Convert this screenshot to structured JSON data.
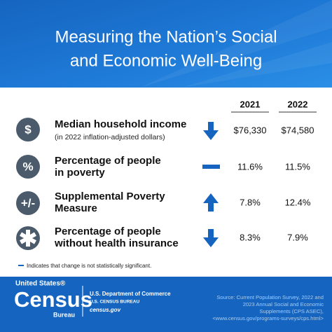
{
  "header": {
    "title_lines": [
      "Measuring the Nation’s Social",
      "and Economic Well-Being"
    ]
  },
  "table": {
    "columns": [
      "2021",
      "2022"
    ],
    "rows": [
      {
        "icon": "$",
        "label": [
          "Median household income"
        ],
        "note": "(in 2022 inflation-adjusted dollars)",
        "values": [
          "$76,330",
          "$74,580"
        ]
      },
      {
        "icon": "%",
        "label": [
          "Percentage of people",
          "in poverty"
        ],
        "values": [
          "11.6%",
          "11.5%"
        ]
      },
      {
        "icon": "+/-",
        "label": [
          "Supplemental Poverty",
          "Measure"
        ],
        "values": [
          "7.8%",
          "12.4%"
        ]
      },
      {
        "label": [
          "Percentage of people",
          "without health insurance"
        ],
        "values": [
          "8.3%",
          "7.9%"
        ]
      }
    ]
  },
  "footnote": "Indicates that change is not statistically significant.",
  "footer": {
    "logo": [
      "United States®",
      "Census",
      "Bureau"
    ],
    "agency": [
      "U.S. Department of Commerce",
      "U.S. CENSUS BUREAU",
      "census.gov"
    ],
    "source": [
      "Source: Current Population Survey, 2022 and",
      "2023 Annual Social and Economic",
      "Supplements (CPS ASEC),",
      "<www.census.gov/programs-surveys/cps.html>"
    ]
  }
}
